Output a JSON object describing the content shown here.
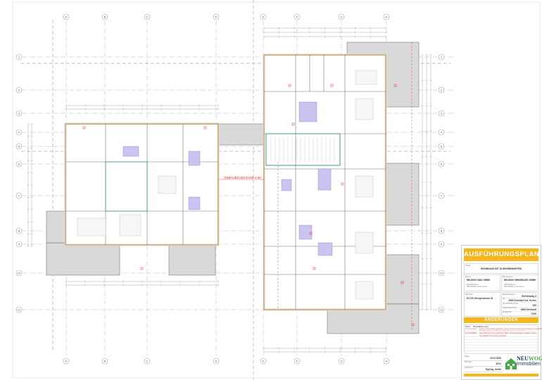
{
  "drawing": {
    "columns": [
      "A",
      "B",
      "C",
      "D",
      "E",
      "F",
      "G",
      "H"
    ],
    "rows": [
      "1",
      "2",
      "3",
      "4",
      "5",
      "6",
      "7",
      "8",
      "9",
      "10",
      "11"
    ],
    "annotation": "GEBÄUDEABSTAND 4.60",
    "colors": {
      "wall": "#f1d9b8",
      "terrace": "#d9d9d9",
      "bath": "#c9c4f0",
      "grid": "#9aa0c8",
      "dim": "#777777",
      "red": "#e03030",
      "accent": "#f5b51b"
    }
  },
  "title_block": {
    "heading": "AUSFÜHRUNGSPLAN",
    "project_label": "Projekt",
    "project": "WOHNHAUS MIT 18 WOHNEINHEITEN",
    "builder_label": "Bauherr",
    "builder_name": "NEUWOG BAU GMBH",
    "builder_street": "Reichsstrasse 1",
    "builder_city": "6091 Mühlau an der Krems",
    "planner_label": "Planverfasser",
    "planner_name": "NEUWOG IMMOBILIEN GMBH",
    "planner_street": "Reichsstrasse 1",
    "planner_city": "6091 Mühlau an der Krems",
    "plan_label": "Planinhalt",
    "plan_content": "M 1:50 Obergeschoss 01",
    "site_fields": [
      {
        "label": "Bauplatzadresse",
        "value": "Gerhofsweg 4"
      },
      {
        "label": "Ort",
        "value": "4560 Kirchdorf a.d. Krems"
      },
      {
        "label": "Grundstücksnummer",
        "value": "523"
      },
      {
        "label": "Katastralgemeinde",
        "value": "4560 Kirchdorf"
      },
      {
        "label": "Einlagezahl",
        "value": "1910"
      }
    ],
    "changes_heading": "ÄNDERUNGEN",
    "changes_header": [
      "Datum",
      "Planindex",
      "Änderungen"
    ],
    "changes": [
      {
        "date": "12.12.2019",
        "index": "AF01",
        "text": "Bauteil Zwischendecke geändert, Fenster 03 verschoben, Wand Abstellraum angepasst"
      },
      {
        "date": "",
        "index": "",
        "text": "Nach Besprechung mit Bauherr Abstellraum 02 neu positioniert"
      },
      {
        "date": "22.01.2020",
        "index": "AF11",
        "text": "Türen Wohnung 4 neu gezeichnet, Maße Terrasse angepasst, Geländer ergänzt"
      },
      {
        "date": "",
        "index": "",
        "text": "TGA Schächte 03 und 04 verschoben"
      }
    ],
    "meta": [
      {
        "label": "Datum",
        "value": "22.01.2020"
      },
      {
        "label": "Planindex",
        "value": "AF11"
      },
      {
        "label": "gezeichnet",
        "value": "Dipl.Ing. Smith"
      }
    ],
    "logo_text": "NEUWOG Immobilien"
  }
}
